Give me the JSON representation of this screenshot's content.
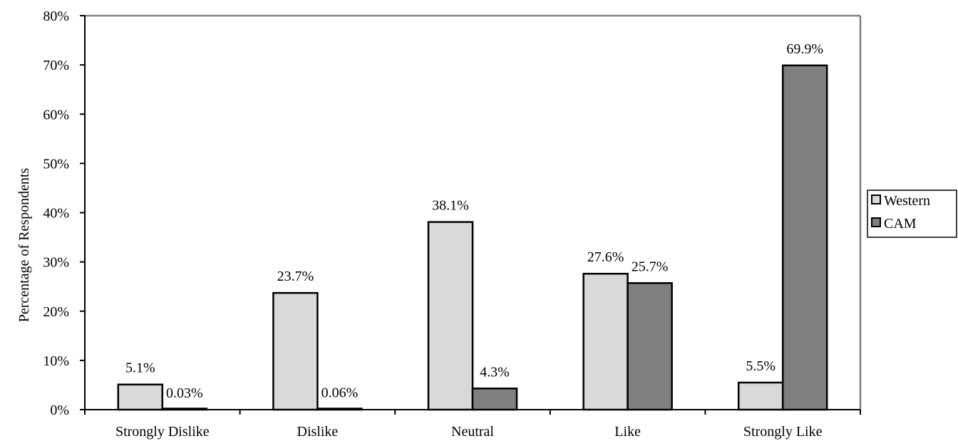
{
  "colors": {
    "western": "#d9d9d9",
    "cam": "#808080",
    "outline": "#000000",
    "plot_border": "#808080"
  },
  "chart_data": {
    "type": "bar",
    "title": "",
    "xlabel": "",
    "ylabel": "Percentage of Respondents",
    "ylim": [
      0,
      80
    ],
    "yticks": [
      0,
      10,
      20,
      30,
      40,
      50,
      60,
      70,
      80
    ],
    "ytick_labels": [
      "0%",
      "10%",
      "20%",
      "30%",
      "40%",
      "50%",
      "60%",
      "70%",
      "80%"
    ],
    "grid": false,
    "legend_position": "right",
    "categories": [
      "Strongly Dislike",
      "Dislike",
      "Neutral",
      "Like",
      "Strongly Like"
    ],
    "series": [
      {
        "name": "Western",
        "values": [
          5.1,
          23.7,
          38.1,
          27.6,
          5.5
        ],
        "labels": [
          "5.1%",
          "23.7%",
          "38.1%",
          "27.6%",
          "5.5%"
        ]
      },
      {
        "name": "CAM",
        "values": [
          0.03,
          0.06,
          4.3,
          25.7,
          69.9
        ],
        "labels": [
          "0.03%",
          "0.06%",
          "4.3%",
          "25.7%",
          "69.9%"
        ]
      }
    ]
  }
}
